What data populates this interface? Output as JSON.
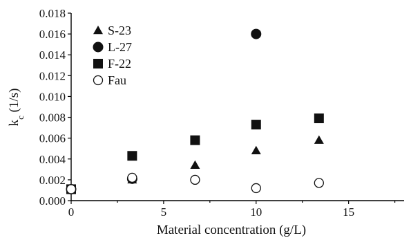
{
  "chart_data": {
    "type": "scatter",
    "xlabel": "Material concentration (g/L)",
    "ylabel": "k",
    "ylabel_subscript": "c",
    "ylabel_unit": " (1/s)",
    "xlim": [
      0,
      18
    ],
    "ylim": [
      0,
      0.018
    ],
    "x_ticks": [
      0,
      5,
      10,
      15
    ],
    "x_tick_labels": [
      "0",
      "5",
      "10",
      "15"
    ],
    "y_ticks": [
      0,
      0.002,
      0.004,
      0.006,
      0.008,
      0.01,
      0.012,
      0.014,
      0.016,
      0.018
    ],
    "y_tick_labels": [
      "0.000",
      "0.002",
      "0.004",
      "0.006",
      "0.008",
      "0.010",
      "0.012",
      "0.014",
      "0.016",
      "0.018"
    ],
    "grid": false,
    "legend_position": "top-left",
    "series": [
      {
        "name": "S-23",
        "marker": "triangle",
        "x": [
          0,
          3.3,
          6.7,
          10,
          13.4
        ],
        "y": [
          0.0011,
          0.002,
          0.0034,
          0.0048,
          0.0058
        ]
      },
      {
        "name": "L-27",
        "marker": "circle-filled",
        "x": [
          0,
          3.3,
          10
        ],
        "y": [
          0.0011,
          0.0021,
          0.016
        ]
      },
      {
        "name": "F-22",
        "marker": "square",
        "x": [
          0,
          3.3,
          6.7,
          10,
          13.4
        ],
        "y": [
          0.0011,
          0.0043,
          0.0058,
          0.0073,
          0.0079
        ]
      },
      {
        "name": "Fau",
        "marker": "circle-open",
        "x": [
          0,
          3.3,
          6.7,
          10,
          13.4
        ],
        "y": [
          0.0011,
          0.0022,
          0.002,
          0.0012,
          0.0017
        ]
      }
    ]
  }
}
